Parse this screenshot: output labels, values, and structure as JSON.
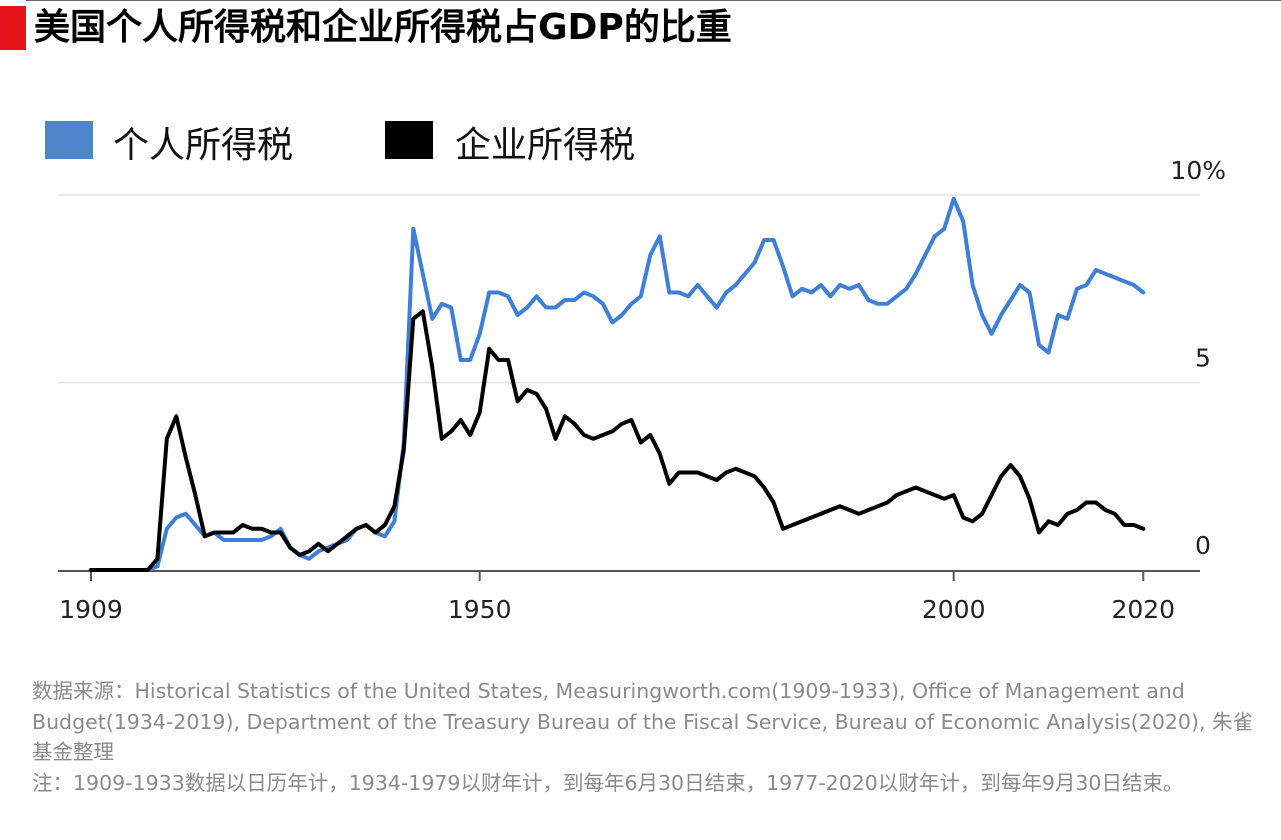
{
  "header": {
    "title": "美国个人所得税和企业所得税占GDP的比重"
  },
  "colors": {
    "accent_red": "#e8141b",
    "personal_series": "#3e7fd8",
    "corporate_series": "#000000",
    "legend_personal": "#4e86c9",
    "legend_corporate": "#000000"
  },
  "chart_data": {
    "type": "line",
    "title": "美国个人所得税和企业所得税占GDP的比重",
    "xlabel": "",
    "ylabel": "",
    "xlim": [
      1909,
      2020
    ],
    "ylim": [
      0,
      10
    ],
    "x_ticks": [
      "1909",
      "1950",
      "2000",
      "2020"
    ],
    "y_ticks": [
      "10%",
      "5",
      "0"
    ],
    "legend_position": "top-left",
    "grid": true,
    "series": [
      {
        "name": "个人所得税",
        "color": "#3e7fd8",
        "x": [
          1909,
          1910,
          1911,
          1912,
          1913,
          1914,
          1915,
          1916,
          1917,
          1918,
          1919,
          1920,
          1921,
          1922,
          1923,
          1924,
          1925,
          1926,
          1927,
          1928,
          1929,
          1930,
          1931,
          1932,
          1933,
          1934,
          1935,
          1936,
          1937,
          1938,
          1939,
          1940,
          1941,
          1942,
          1943,
          1944,
          1945,
          1946,
          1947,
          1948,
          1949,
          1950,
          1951,
          1952,
          1953,
          1954,
          1955,
          1956,
          1957,
          1958,
          1959,
          1960,
          1961,
          1962,
          1963,
          1964,
          1965,
          1966,
          1967,
          1968,
          1969,
          1970,
          1971,
          1972,
          1973,
          1974,
          1975,
          1976,
          1977,
          1978,
          1979,
          1980,
          1981,
          1982,
          1983,
          1984,
          1985,
          1986,
          1987,
          1988,
          1989,
          1990,
          1991,
          1992,
          1993,
          1994,
          1995,
          1996,
          1997,
          1998,
          1999,
          2000,
          2001,
          2002,
          2003,
          2004,
          2005,
          2006,
          2007,
          2008,
          2009,
          2010,
          2011,
          2012,
          2013,
          2014,
          2015,
          2016,
          2017,
          2018,
          2019,
          2020
        ],
        "values": [
          0,
          0,
          0,
          0,
          0,
          0,
          0,
          0.1,
          1.1,
          1.4,
          1.5,
          1.2,
          0.9,
          1.0,
          0.8,
          0.8,
          0.8,
          0.8,
          0.8,
          0.9,
          1.1,
          0.6,
          0.4,
          0.3,
          0.5,
          0.6,
          0.7,
          0.8,
          1.1,
          1.2,
          1.0,
          0.9,
          1.3,
          3.4,
          9.1,
          7.9,
          6.7,
          7.1,
          7.0,
          5.6,
          5.6,
          6.3,
          7.4,
          7.4,
          7.3,
          6.8,
          7.0,
          7.3,
          7.0,
          7.0,
          7.2,
          7.2,
          7.4,
          7.3,
          7.1,
          6.6,
          6.8,
          7.1,
          7.3,
          8.4,
          8.9,
          7.4,
          7.4,
          7.3,
          7.6,
          7.3,
          7.0,
          7.4,
          7.6,
          7.9,
          8.2,
          8.8,
          8.8,
          8.1,
          7.3,
          7.5,
          7.4,
          7.6,
          7.3,
          7.6,
          7.5,
          7.6,
          7.2,
          7.1,
          7.1,
          7.3,
          7.5,
          7.9,
          8.4,
          8.9,
          9.1,
          9.9,
          9.3,
          7.6,
          6.8,
          6.3,
          6.8,
          7.2,
          7.6,
          7.4,
          6.0,
          5.8,
          6.8,
          6.7,
          7.5,
          7.6,
          8.0,
          7.9,
          7.8,
          7.7,
          7.6,
          7.4
        ]
      },
      {
        "name": "企业所得税",
        "color": "#000000",
        "x": [
          1909,
          1910,
          1911,
          1912,
          1913,
          1914,
          1915,
          1916,
          1917,
          1918,
          1919,
          1920,
          1921,
          1922,
          1923,
          1924,
          1925,
          1926,
          1927,
          1928,
          1929,
          1930,
          1931,
          1932,
          1933,
          1934,
          1935,
          1936,
          1937,
          1938,
          1939,
          1940,
          1941,
          1942,
          1943,
          1944,
          1945,
          1946,
          1947,
          1948,
          1949,
          1950,
          1951,
          1952,
          1953,
          1954,
          1955,
          1956,
          1957,
          1958,
          1959,
          1960,
          1961,
          1962,
          1963,
          1964,
          1965,
          1966,
          1967,
          1968,
          1969,
          1970,
          1971,
          1972,
          1973,
          1974,
          1975,
          1976,
          1977,
          1978,
          1979,
          1980,
          1981,
          1982,
          1983,
          1984,
          1985,
          1986,
          1987,
          1988,
          1989,
          1990,
          1991,
          1992,
          1993,
          1994,
          1995,
          1996,
          1997,
          1998,
          1999,
          2000,
          2001,
          2002,
          2003,
          2004,
          2005,
          2006,
          2007,
          2008,
          2009,
          2010,
          2011,
          2012,
          2013,
          2014,
          2015,
          2016,
          2017,
          2018,
          2019,
          2020
        ],
        "values": [
          0,
          0,
          0,
          0,
          0,
          0,
          0,
          0.3,
          3.5,
          4.1,
          3.0,
          2.0,
          0.9,
          1.0,
          1.0,
          1.0,
          1.2,
          1.1,
          1.1,
          1.0,
          1.0,
          0.6,
          0.4,
          0.5,
          0.7,
          0.5,
          0.7,
          0.9,
          1.1,
          1.2,
          1.0,
          1.2,
          1.7,
          3.2,
          6.7,
          6.9,
          5.4,
          3.5,
          3.7,
          4.0,
          3.6,
          4.2,
          5.9,
          5.6,
          5.6,
          4.5,
          4.8,
          4.7,
          4.3,
          3.5,
          4.1,
          3.9,
          3.6,
          3.5,
          3.6,
          3.7,
          3.9,
          4.0,
          3.4,
          3.6,
          3.1,
          2.3,
          2.6,
          2.6,
          2.6,
          2.5,
          2.4,
          2.6,
          2.7,
          2.6,
          2.5,
          2.2,
          1.8,
          1.1,
          1.2,
          1.3,
          1.4,
          1.5,
          1.6,
          1.7,
          1.6,
          1.5,
          1.6,
          1.7,
          1.8,
          2.0,
          2.1,
          2.2,
          2.1,
          2.0,
          1.9,
          2.0,
          1.4,
          1.3,
          1.5,
          2.0,
          2.5,
          2.8,
          2.5,
          1.9,
          1.0,
          1.3,
          1.2,
          1.5,
          1.6,
          1.8,
          1.8,
          1.6,
          1.5,
          1.2,
          1.2,
          1.1
        ]
      }
    ]
  },
  "notes": {
    "source": "数据来源：Historical Statistics of the United States, Measuringworth.com(1909-1933), Office of Management and Budget(1934-2019), Department of the Treasury Bureau of the Fiscal Service, Bureau of Economic Analysis(2020), 朱雀基金整理",
    "note": "注：1909-1933数据以日历年计，1934-1979以财年计，到每年6月30日结束，1977-2020以财年计，到每年9月30日结束。"
  }
}
